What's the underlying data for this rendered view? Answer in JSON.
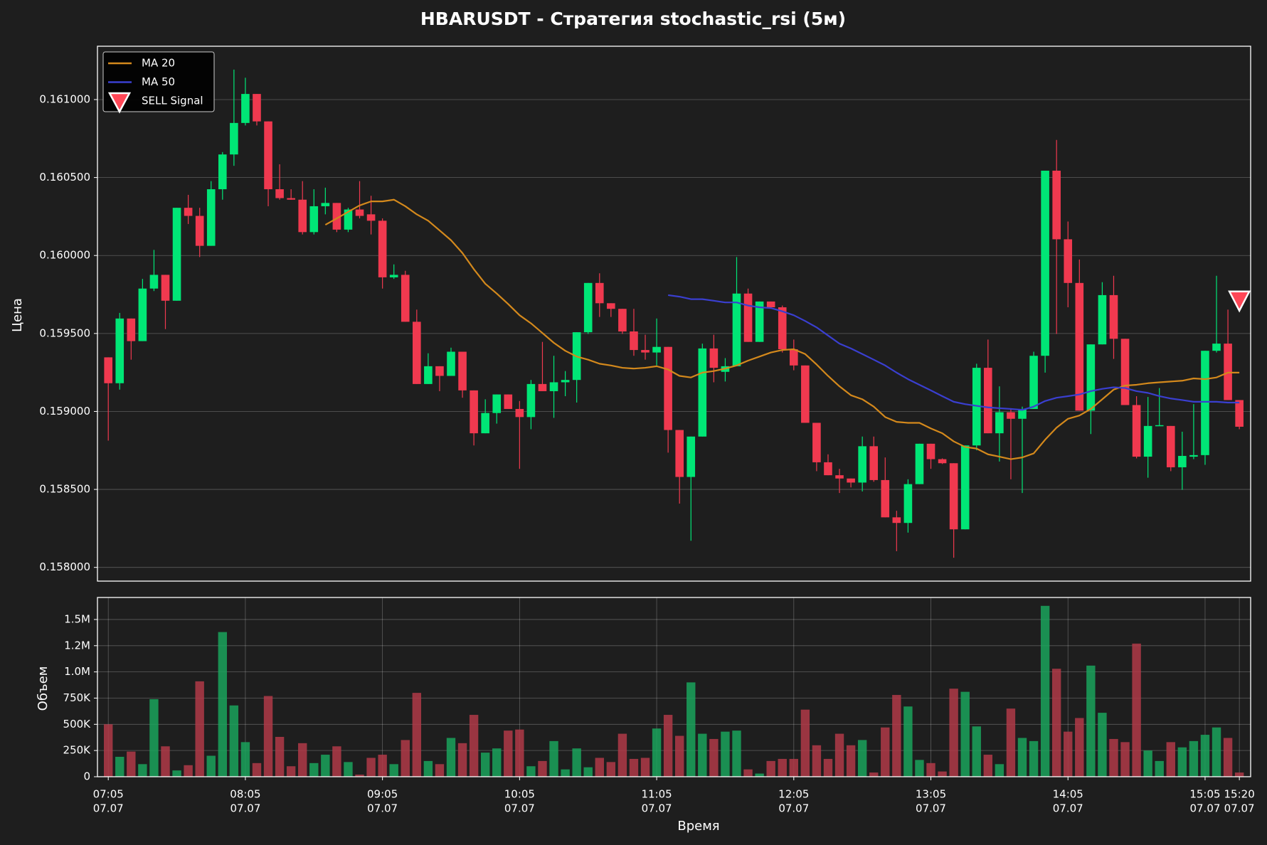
{
  "chart_data": [
    {
      "type": "candlestick",
      "title": "HBARUSDT - Стратегия stochastic_rsi (5м)",
      "ylabel": "Цена",
      "up_color": "#00e676",
      "down_color": "#f0394f",
      "grid": "y",
      "legend": "upper left",
      "ylim": [
        0.157912,
        0.161342
      ],
      "yticks": [
        {
          "value": 0.158,
          "label": "0.158000"
        },
        {
          "value": 0.1585,
          "label": "0.158500"
        },
        {
          "value": 0.159,
          "label": "0.159000"
        },
        {
          "value": 0.1595,
          "label": "0.159500"
        },
        {
          "value": 0.16,
          "label": "0.160000"
        },
        {
          "value": 0.1605,
          "label": "0.160500"
        },
        {
          "value": 0.161,
          "label": "0.161000"
        }
      ],
      "open": [
        0.159347,
        0.159181,
        0.159596,
        0.159451,
        0.159788,
        0.159876,
        0.15971,
        0.160306,
        0.160254,
        0.160062,
        0.160425,
        0.160648,
        0.16085,
        0.161036,
        0.16086,
        0.160425,
        0.160368,
        0.160358,
        0.16015,
        0.160316,
        0.160337,
        0.160166,
        0.160295,
        0.160264,
        0.160223,
        0.15986,
        0.159876,
        0.159575,
        0.159176,
        0.15929,
        0.159228,
        0.159383,
        0.159135,
        0.15886,
        0.15899,
        0.159109,
        0.159016,
        0.158964,
        0.159176,
        0.15913,
        0.159187,
        0.159202,
        0.159508,
        0.159824,
        0.159694,
        0.159658,
        0.159513,
        0.159394,
        0.159378,
        0.159414,
        0.158881,
        0.15858,
        0.158839,
        0.159404,
        0.159254,
        0.15929,
        0.159756,
        0.159446,
        0.159705,
        0.159668,
        0.159399,
        0.159295,
        0.158927,
        0.158674,
        0.158591,
        0.15857,
        0.158544,
        0.158777,
        0.15856,
        0.158321,
        0.158285,
        0.158534,
        0.158793,
        0.158694,
        0.158668,
        0.158244,
        0.158782,
        0.15928,
        0.15886,
        0.158995,
        0.158953,
        0.159016,
        0.159357,
        0.160544,
        0.160104,
        0.159824,
        0.159005,
        0.15943,
        0.159746,
        0.159466,
        0.159041,
        0.15871,
        0.158907,
        0.158907,
        0.158642,
        0.15871,
        0.15872,
        0.159389,
        0.159435,
        0.159073
      ],
      "high": [
        0.159347,
        0.159632,
        0.159596,
        0.15985,
        0.160036,
        0.159876,
        0.160306,
        0.160389,
        0.160306,
        0.160477,
        0.160663,
        0.161192,
        0.16114,
        0.161036,
        0.16086,
        0.160585,
        0.160425,
        0.160477,
        0.160425,
        0.160435,
        0.160337,
        0.160306,
        0.160477,
        0.160383,
        0.160238,
        0.159943,
        0.159902,
        0.159653,
        0.159373,
        0.15929,
        0.159409,
        0.159383,
        0.159135,
        0.159078,
        0.159109,
        0.159109,
        0.159067,
        0.159202,
        0.159446,
        0.159357,
        0.159259,
        0.159508,
        0.159824,
        0.159886,
        0.159694,
        0.159658,
        0.159658,
        0.159492,
        0.159596,
        0.159414,
        0.158881,
        0.158839,
        0.159435,
        0.159492,
        0.159342,
        0.15999,
        0.159788,
        0.159705,
        0.159705,
        0.159679,
        0.159461,
        0.159295,
        0.158927,
        0.158725,
        0.158632,
        0.15857,
        0.158839,
        0.158839,
        0.158705,
        0.158363,
        0.158565,
        0.158793,
        0.158793,
        0.158699,
        0.158668,
        0.158782,
        0.159306,
        0.159461,
        0.159161,
        0.159021,
        0.159031,
        0.159383,
        0.160544,
        0.160741,
        0.160218,
        0.159974,
        0.15943,
        0.159829,
        0.15987,
        0.159466,
        0.159098,
        0.159093,
        0.15915,
        0.158907,
        0.15887,
        0.159047,
        0.159389,
        0.15987,
        0.159653,
        0.159073
      ],
      "low": [
        0.158813,
        0.15914,
        0.159332,
        0.159451,
        0.159772,
        0.159528,
        0.15971,
        0.160202,
        0.15999,
        0.160062,
        0.160358,
        0.160575,
        0.160834,
        0.160834,
        0.160316,
        0.160358,
        0.160358,
        0.160135,
        0.160135,
        0.160264,
        0.16015,
        0.16015,
        0.160238,
        0.160135,
        0.159788,
        0.15985,
        0.159575,
        0.159176,
        0.159176,
        0.15913,
        0.159228,
        0.159088,
        0.158782,
        0.15886,
        0.158922,
        0.159016,
        0.158632,
        0.158886,
        0.15913,
        0.158959,
        0.159098,
        0.159057,
        0.159497,
        0.159606,
        0.159606,
        0.159497,
        0.159357,
        0.159332,
        0.159295,
        0.158736,
        0.158409,
        0.158171,
        0.158839,
        0.159187,
        0.159192,
        0.15929,
        0.159446,
        0.159446,
        0.159668,
        0.159378,
        0.159264,
        0.158927,
        0.158617,
        0.158591,
        0.158477,
        0.158513,
        0.158487,
        0.158549,
        0.158321,
        0.158104,
        0.158223,
        0.158534,
        0.158632,
        0.158663,
        0.158062,
        0.158244,
        0.158751,
        0.15886,
        0.158679,
        0.158565,
        0.158477,
        0.159016,
        0.159249,
        0.159497,
        0.159668,
        0.159005,
        0.158855,
        0.15943,
        0.159337,
        0.159041,
        0.158699,
        0.158575,
        0.158907,
        0.158617,
        0.158497,
        0.158694,
        0.158658,
        0.159378,
        0.159073,
        0.158886
      ],
      "close": [
        0.159181,
        0.159596,
        0.159451,
        0.159788,
        0.159876,
        0.15971,
        0.160306,
        0.160254,
        0.160062,
        0.160425,
        0.160648,
        0.16085,
        0.161036,
        0.16086,
        0.160425,
        0.160368,
        0.160358,
        0.16015,
        0.160316,
        0.160337,
        0.160166,
        0.160295,
        0.160254,
        0.160223,
        0.15986,
        0.159876,
        0.159575,
        0.159176,
        0.15929,
        0.159228,
        0.159383,
        0.159135,
        0.15886,
        0.15899,
        0.159109,
        0.159016,
        0.158964,
        0.159176,
        0.15913,
        0.159187,
        0.159202,
        0.159508,
        0.159824,
        0.159694,
        0.159658,
        0.159513,
        0.159394,
        0.159378,
        0.159414,
        0.158881,
        0.15858,
        0.158839,
        0.159404,
        0.15928,
        0.15929,
        0.159756,
        0.159446,
        0.159705,
        0.159668,
        0.159399,
        0.159295,
        0.158927,
        0.158674,
        0.158591,
        0.15857,
        0.158544,
        0.158777,
        0.15856,
        0.158321,
        0.158285,
        0.158534,
        0.158793,
        0.158694,
        0.158668,
        0.158244,
        0.158782,
        0.15928,
        0.15886,
        0.158995,
        0.158953,
        0.159016,
        0.159357,
        0.160544,
        0.160104,
        0.159824,
        0.159005,
        0.15943,
        0.159746,
        0.159466,
        0.159041,
        0.15871,
        0.158907,
        0.158912,
        0.158642,
        0.158715,
        0.15872,
        0.159389,
        0.159435,
        0.159073,
        0.158902
      ],
      "series": [
        {
          "name": "MA 20",
          "color": "#d4891c",
          "values": [
            null,
            null,
            null,
            null,
            null,
            null,
            null,
            null,
            null,
            null,
            null,
            null,
            null,
            null,
            null,
            null,
            null,
            null,
            null,
            0.160197,
            0.160238,
            0.16028,
            0.160321,
            0.160347,
            0.160347,
            0.160358,
            0.160316,
            0.160264,
            0.160223,
            0.160161,
            0.160098,
            0.160016,
            0.159912,
            0.159819,
            0.159756,
            0.159689,
            0.159617,
            0.159565,
            0.159503,
            0.15944,
            0.159389,
            0.159352,
            0.159332,
            0.159306,
            0.159295,
            0.15928,
            0.159275,
            0.15928,
            0.15929,
            0.159269,
            0.159228,
            0.159218,
            0.159249,
            0.159259,
            0.159275,
            0.159295,
            0.159326,
            0.159352,
            0.159378,
            0.159394,
            0.159399,
            0.159368,
            0.159301,
            0.159228,
            0.159161,
            0.159104,
            0.159078,
            0.159031,
            0.158964,
            0.158933,
            0.158927,
            0.158927,
            0.158891,
            0.15886,
            0.158808,
            0.158772,
            0.158762,
            0.158725,
            0.15871,
            0.158694,
            0.158705,
            0.158731,
            0.158819,
            0.158896,
            0.158953,
            0.158974,
            0.159016,
            0.159078,
            0.15914,
            0.159166,
            0.159171,
            0.159181,
            0.159187,
            0.159192,
            0.159197,
            0.159212,
            0.159207,
            0.159218,
            0.159249,
            0.159249
          ]
        },
        {
          "name": "MA 50",
          "color": "#3a3fd0",
          "values": [
            null,
            null,
            null,
            null,
            null,
            null,
            null,
            null,
            null,
            null,
            null,
            null,
            null,
            null,
            null,
            null,
            null,
            null,
            null,
            null,
            null,
            null,
            null,
            null,
            null,
            null,
            null,
            null,
            null,
            null,
            null,
            null,
            null,
            null,
            null,
            null,
            null,
            null,
            null,
            null,
            null,
            null,
            null,
            null,
            null,
            null,
            null,
            null,
            null,
            0.159746,
            0.159736,
            0.15972,
            0.15972,
            0.15971,
            0.159699,
            0.159699,
            0.159679,
            0.159668,
            0.159663,
            0.159642,
            0.159617,
            0.15958,
            0.159539,
            0.159487,
            0.159435,
            0.159404,
            0.159368,
            0.159332,
            0.159295,
            0.159249,
            0.159207,
            0.159171,
            0.159135,
            0.159098,
            0.159062,
            0.159047,
            0.159036,
            0.159026,
            0.159021,
            0.159016,
            0.15901,
            0.159031,
            0.159067,
            0.159088,
            0.159098,
            0.159109,
            0.15913,
            0.159145,
            0.159155,
            0.15915,
            0.15913,
            0.159119,
            0.159098,
            0.159083,
            0.159073,
            0.159062,
            0.159062,
            0.159062,
            0.159057,
            0.159057
          ]
        },
        {
          "name": "SELL Signal",
          "color": "#ff4757",
          "marker": "triangle-down",
          "values": [
            null,
            null,
            null,
            null,
            null,
            null,
            null,
            null,
            null,
            null,
            null,
            null,
            null,
            null,
            null,
            null,
            null,
            null,
            null,
            null,
            null,
            null,
            null,
            null,
            null,
            null,
            null,
            null,
            null,
            null,
            null,
            null,
            null,
            null,
            null,
            null,
            null,
            null,
            null,
            null,
            null,
            null,
            null,
            null,
            null,
            null,
            null,
            null,
            null,
            null,
            null,
            null,
            null,
            null,
            null,
            null,
            null,
            null,
            null,
            null,
            null,
            null,
            null,
            null,
            null,
            null,
            null,
            null,
            null,
            null,
            null,
            null,
            null,
            null,
            null,
            null,
            null,
            null,
            null,
            null,
            null,
            null,
            null,
            null,
            null,
            null,
            null,
            null,
            null,
            null,
            null,
            null,
            null,
            null,
            null,
            null,
            null,
            null,
            null,
            0.15971
          ]
        }
      ]
    },
    {
      "type": "bar",
      "ylabel": "Объем",
      "xlabel": "Время",
      "up_color": "#1aa35c",
      "down_color": "#b03a48",
      "grid": "both",
      "ylim": [
        0,
        1710000
      ],
      "yticks": [
        0,
        {
          "value": 250000,
          "label": "250K"
        },
        {
          "value": 500000,
          "label": "500K"
        },
        {
          "value": 750000,
          "label": "750K"
        },
        {
          "value": 1000000,
          "label": "1.0M"
        },
        {
          "value": 1250000,
          "label": "1.2M"
        },
        {
          "value": 1500000,
          "label": "1.5M"
        }
      ],
      "categories": [
        [
          "07:05",
          "07.07"
        ],
        null,
        null,
        null,
        null,
        null,
        null,
        null,
        null,
        null,
        null,
        null,
        [
          "08:05",
          "07.07"
        ],
        null,
        null,
        null,
        null,
        null,
        null,
        null,
        null,
        null,
        null,
        null,
        [
          "09:05",
          "07.07"
        ],
        null,
        null,
        null,
        null,
        null,
        null,
        null,
        null,
        null,
        null,
        null,
        [
          "10:05",
          "07.07"
        ],
        null,
        null,
        null,
        null,
        null,
        null,
        null,
        null,
        null,
        null,
        null,
        [
          "11:05",
          "07.07"
        ],
        null,
        null,
        null,
        null,
        null,
        null,
        null,
        null,
        null,
        null,
        null,
        [
          "12:05",
          "07.07"
        ],
        null,
        null,
        null,
        null,
        null,
        null,
        null,
        null,
        null,
        null,
        null,
        [
          "13:05",
          "07.07"
        ],
        null,
        null,
        null,
        null,
        null,
        null,
        null,
        null,
        null,
        null,
        null,
        [
          "14:05",
          "07.07"
        ],
        null,
        null,
        null,
        null,
        null,
        null,
        null,
        null,
        null,
        null,
        null,
        [
          "15:05",
          "07.07"
        ],
        null,
        null,
        [
          "15:20",
          "07.07"
        ]
      ],
      "values": [
        500000,
        190000,
        240000,
        120000,
        740000,
        290000,
        60000,
        110000,
        910000,
        200000,
        1380000,
        680000,
        330000,
        130000,
        770000,
        380000,
        100000,
        320000,
        130000,
        210000,
        290000,
        140000,
        20000,
        180000,
        210000,
        120000,
        350000,
        800000,
        150000,
        120000,
        370000,
        320000,
        590000,
        230000,
        270000,
        440000,
        450000,
        100000,
        150000,
        340000,
        70000,
        270000,
        90000,
        180000,
        140000,
        410000,
        170000,
        180000,
        460000,
        590000,
        390000,
        900000,
        410000,
        360000,
        430000,
        440000,
        70000,
        30000,
        150000,
        170000,
        170000,
        640000,
        300000,
        170000,
        410000,
        300000,
        350000,
        40000,
        470000,
        780000,
        670000,
        160000,
        130000,
        50000,
        840000,
        810000,
        480000,
        210000,
        120000,
        650000,
        370000,
        340000,
        1630000,
        1030000,
        430000,
        560000,
        1060000,
        610000,
        360000,
        330000,
        1270000,
        250000,
        150000,
        330000,
        280000,
        340000,
        400000,
        470000,
        370000,
        40000
      ]
    }
  ]
}
